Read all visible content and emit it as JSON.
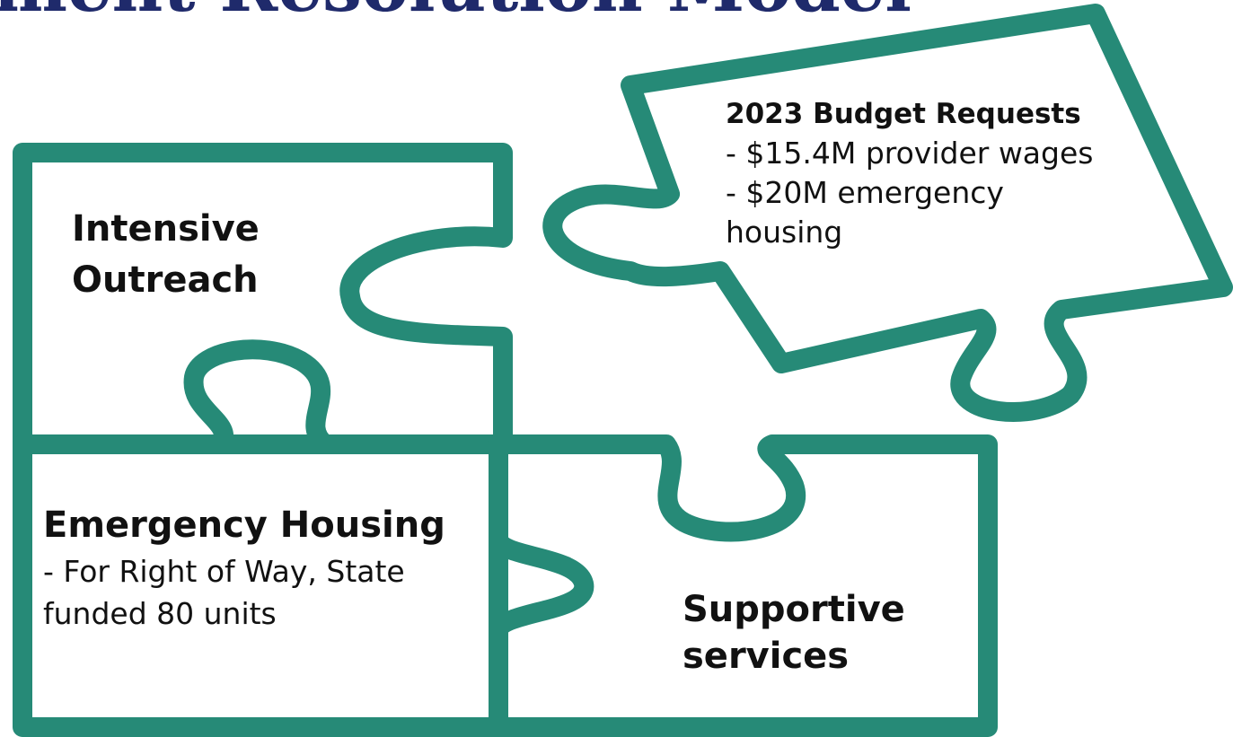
{
  "header": {
    "title": "Encampment Resolution Model"
  },
  "nodes": [
    {
      "heading": [
        "Intensive",
        "Outreach"
      ],
      "lines": []
    },
    {
      "heading": [
        "2023 Budget Requests"
      ],
      "lines": [
        "- $15.4M provider wages",
        "- $20M emergency",
        "housing"
      ]
    },
    {
      "heading": [
        "Emergency Housing"
      ],
      "lines": [
        "- For Right of Way, State",
        "funded 80 units"
      ]
    },
    {
      "heading": [
        "Supportive",
        "services"
      ],
      "lines": []
    }
  ]
}
